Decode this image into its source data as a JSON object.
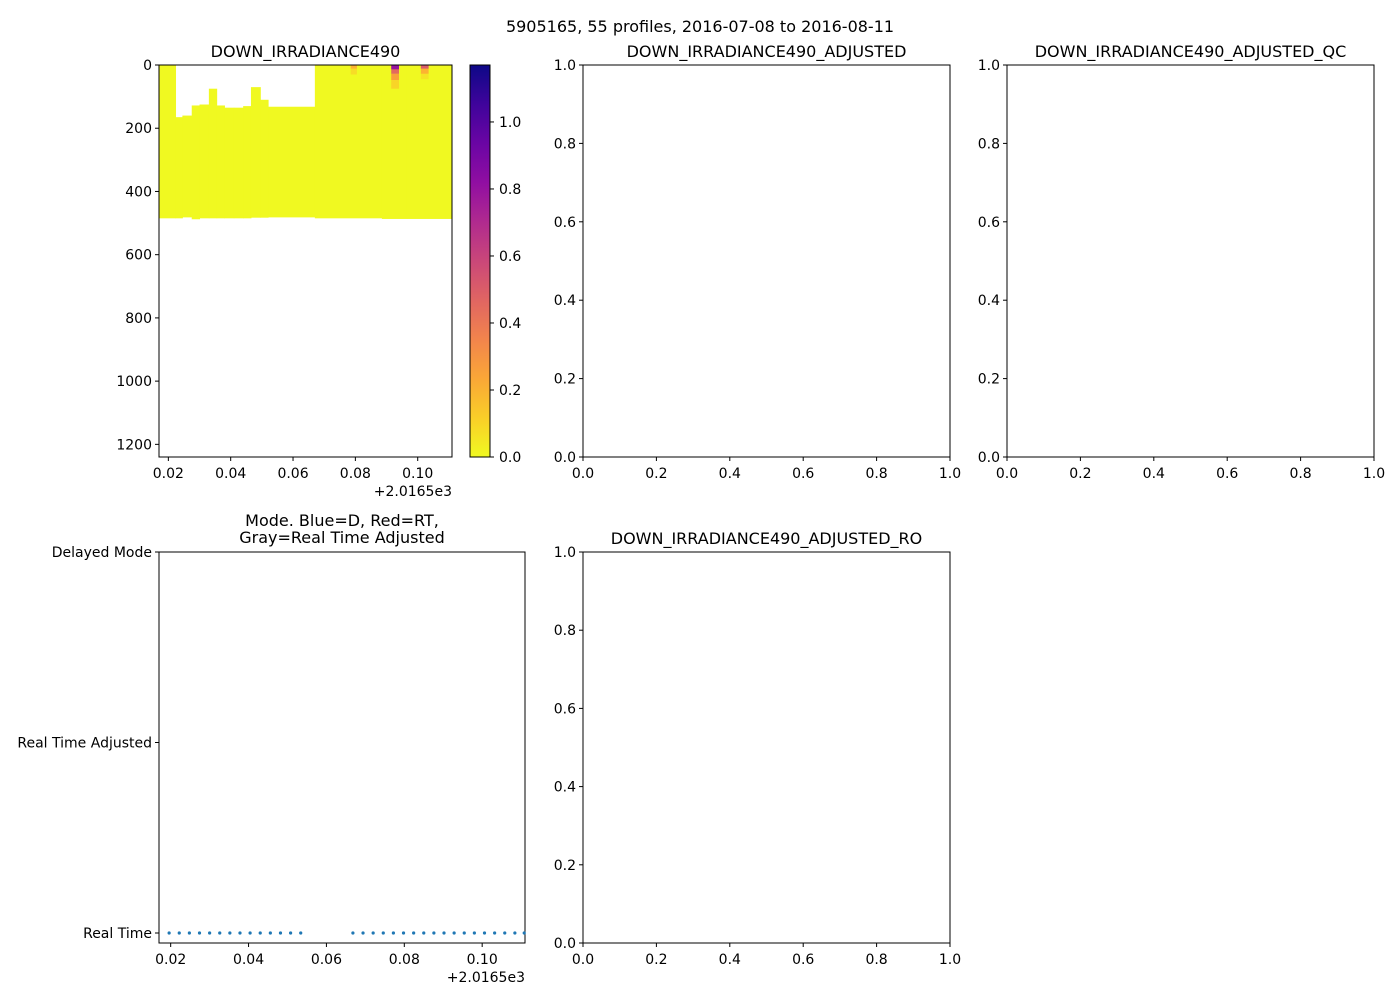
{
  "figure": {
    "suptitle": "5905165, 55 profiles, 2016-07-08 to 2016-08-11"
  },
  "chart_data": [
    {
      "id": "irradiance",
      "type": "heatmap",
      "title": "DOWN_IRRADIANCE490",
      "xlim": [
        0.017,
        0.111
      ],
      "ylim": [
        1240,
        0
      ],
      "xticks": [
        "0.02",
        "0.04",
        "0.06",
        "0.08",
        "0.10"
      ],
      "xtick_values": [
        0.02,
        0.04,
        0.06,
        0.08,
        0.1
      ],
      "x_offset_label": "+2.0165e3",
      "yticks": [
        "0",
        "200",
        "400",
        "600",
        "800",
        "1000",
        "1200"
      ],
      "ytick_values": [
        0,
        200,
        400,
        600,
        800,
        1000,
        1200
      ],
      "colormap": "plasma_r",
      "colorbar": {
        "vmin": 0,
        "vmax": 1.17,
        "ticks": [
          "0.0",
          "0.2",
          "0.4",
          "0.6",
          "0.8",
          "1.0"
        ],
        "tick_values": [
          0.0,
          0.2,
          0.4,
          0.6,
          0.8,
          1.0
        ]
      },
      "columns": [
        {
          "x0": 0.017,
          "x1": 0.0223,
          "top": 0,
          "bottom": 485
        },
        {
          "x0": 0.0223,
          "x1": 0.0245,
          "top": 165,
          "bottom": 485
        },
        {
          "x0": 0.0245,
          "x1": 0.0275,
          "top": 160,
          "bottom": 482
        },
        {
          "x0": 0.0275,
          "x1": 0.03,
          "top": 128,
          "bottom": 488
        },
        {
          "x0": 0.03,
          "x1": 0.033,
          "top": 125,
          "bottom": 485
        },
        {
          "x0": 0.033,
          "x1": 0.0355,
          "top": 75,
          "bottom": 485
        },
        {
          "x0": 0.0355,
          "x1": 0.038,
          "top": 128,
          "bottom": 485
        },
        {
          "x0": 0.038,
          "x1": 0.041,
          "top": 135,
          "bottom": 485
        },
        {
          "x0": 0.041,
          "x1": 0.044,
          "top": 135,
          "bottom": 485
        },
        {
          "x0": 0.044,
          "x1": 0.0465,
          "top": 130,
          "bottom": 485
        },
        {
          "x0": 0.0465,
          "x1": 0.0495,
          "top": 70,
          "bottom": 483
        },
        {
          "x0": 0.0495,
          "x1": 0.052,
          "top": 110,
          "bottom": 483
        },
        {
          "x0": 0.052,
          "x1": 0.067,
          "top": 132,
          "bottom": 482
        },
        {
          "x0": 0.067,
          "x1": 0.0885,
          "top": 0,
          "bottom": 485
        },
        {
          "x0": 0.0885,
          "x1": 0.0965,
          "top": 0,
          "bottom": 487
        },
        {
          "x0": 0.0965,
          "x1": 0.111,
          "top": 0,
          "bottom": 487
        }
      ],
      "hotspots": [
        {
          "x0": 0.0785,
          "x1": 0.0805,
          "top": 0,
          "bottom": 12,
          "value": 0.2
        },
        {
          "x0": 0.0785,
          "x1": 0.0805,
          "top": 12,
          "bottom": 30,
          "value": 0.08
        },
        {
          "x0": 0.0915,
          "x1": 0.094,
          "top": 0,
          "bottom": 14,
          "value": 0.8
        },
        {
          "x0": 0.0915,
          "x1": 0.094,
          "top": 14,
          "bottom": 28,
          "value": 0.45
        },
        {
          "x0": 0.0915,
          "x1": 0.094,
          "top": 28,
          "bottom": 48,
          "value": 0.25
        },
        {
          "x0": 0.0915,
          "x1": 0.094,
          "top": 48,
          "bottom": 75,
          "value": 0.1
        },
        {
          "x0": 0.101,
          "x1": 0.1035,
          "top": 0,
          "bottom": 12,
          "value": 0.5
        },
        {
          "x0": 0.101,
          "x1": 0.1035,
          "top": 12,
          "bottom": 28,
          "value": 0.2
        },
        {
          "x0": 0.101,
          "x1": 0.1035,
          "top": 28,
          "bottom": 45,
          "value": 0.06
        }
      ]
    },
    {
      "id": "adjusted",
      "type": "scatter",
      "title": "DOWN_IRRADIANCE490_ADJUSTED",
      "xlim": [
        0,
        1
      ],
      "ylim": [
        0,
        1
      ],
      "xticks": [
        "0.0",
        "0.2",
        "0.4",
        "0.6",
        "0.8",
        "1.0"
      ],
      "yticks": [
        "0.0",
        "0.2",
        "0.4",
        "0.6",
        "0.8",
        "1.0"
      ],
      "series": []
    },
    {
      "id": "adjusted_qc",
      "type": "scatter",
      "title": "DOWN_IRRADIANCE490_ADJUSTED_QC",
      "xlim": [
        0,
        1
      ],
      "ylim": [
        0,
        1
      ],
      "xticks": [
        "0.0",
        "0.2",
        "0.4",
        "0.6",
        "0.8",
        "1.0"
      ],
      "yticks": [
        "0.0",
        "0.2",
        "0.4",
        "0.6",
        "0.8",
        "1.0"
      ],
      "series": []
    },
    {
      "id": "mode",
      "type": "scatter",
      "title": "Mode. Blue=D, Red=RT,\nGray=Real Time Adjusted",
      "title_lines": [
        "Mode. Blue=D, Red=RT,",
        "Gray=Real Time Adjusted"
      ],
      "xlim": [
        0.017,
        0.111
      ],
      "ylim": [
        0,
        2
      ],
      "xticks": [
        "0.02",
        "0.04",
        "0.06",
        "0.08",
        "0.10"
      ],
      "xtick_values": [
        0.02,
        0.04,
        0.06,
        0.08,
        0.1
      ],
      "x_offset_label": "+2.0165e3",
      "ycategories": [
        "Real Time",
        "Real Time Adjusted",
        "Delayed Mode"
      ],
      "point_color": "#1f77b4",
      "points_x": [
        0.0196,
        0.0222,
        0.0248,
        0.0274,
        0.03,
        0.0326,
        0.0352,
        0.0378,
        0.0404,
        0.043,
        0.0456,
        0.0482,
        0.0508,
        0.0534,
        0.0668,
        0.0694,
        0.072,
        0.0746,
        0.0772,
        0.0798,
        0.0824,
        0.085,
        0.0876,
        0.0902,
        0.0928,
        0.0954,
        0.098,
        0.1006,
        0.1032,
        0.1058,
        0.1084,
        0.1108
      ],
      "points_y": 0
    },
    {
      "id": "adjusted_ro",
      "type": "scatter",
      "title": "DOWN_IRRADIANCE490_ADJUSTED_RO",
      "xlim": [
        0,
        1
      ],
      "ylim": [
        0,
        1
      ],
      "xticks": [
        "0.0",
        "0.2",
        "0.4",
        "0.6",
        "0.8",
        "1.0"
      ],
      "yticks": [
        "0.0",
        "0.2",
        "0.4",
        "0.6",
        "0.8",
        "1.0"
      ],
      "series": []
    }
  ]
}
